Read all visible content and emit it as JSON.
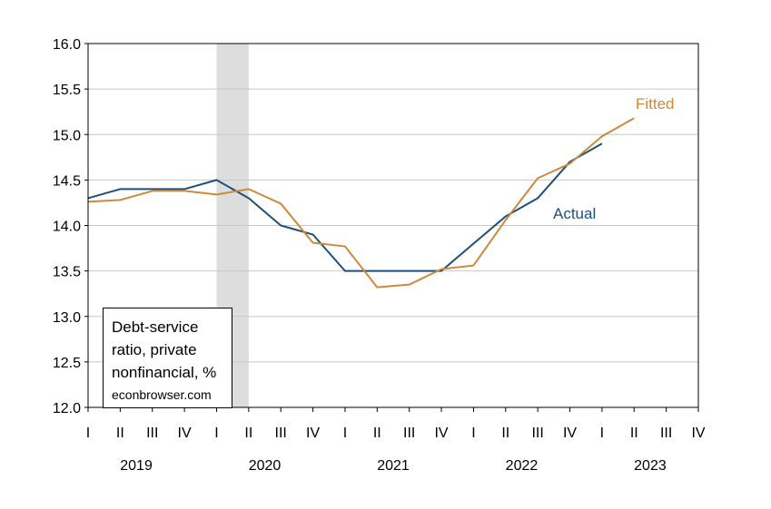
{
  "chart_data": {
    "type": "line",
    "title": "",
    "xlabel": "",
    "ylabel": "",
    "ylim": [
      12.0,
      16.0
    ],
    "yticks": [
      "12.0",
      "12.5",
      "13.0",
      "13.5",
      "14.0",
      "14.5",
      "15.0",
      "15.5",
      "16.0"
    ],
    "ytick_values": [
      12.0,
      12.5,
      13.0,
      13.5,
      14.0,
      14.5,
      15.0,
      15.5,
      16.0
    ],
    "quarter_labels": [
      "I",
      "II",
      "III",
      "IV",
      "I",
      "II",
      "III",
      "IV",
      "I",
      "II",
      "III",
      "IV",
      "I",
      "II",
      "III",
      "IV",
      "I",
      "II",
      "III",
      "IV"
    ],
    "year_labels": [
      "2019",
      "2020",
      "2021",
      "2022",
      "2023"
    ],
    "x": [
      "2019Q1",
      "2019Q2",
      "2019Q3",
      "2019Q4",
      "2020Q1",
      "2020Q2",
      "2020Q3",
      "2020Q4",
      "2021Q1",
      "2021Q2",
      "2021Q3",
      "2021Q4",
      "2022Q1",
      "2022Q2",
      "2022Q3",
      "2022Q4",
      "2023Q1",
      "2023Q2"
    ],
    "series": [
      {
        "name": "Actual",
        "color": "#1f4e79",
        "values": [
          14.3,
          14.4,
          14.4,
          14.4,
          14.5,
          14.3,
          14.0,
          13.9,
          13.5,
          13.5,
          13.5,
          13.5,
          13.8,
          14.1,
          14.3,
          14.7,
          14.9,
          null
        ]
      },
      {
        "name": "Fitted",
        "color": "#cc8a3c",
        "values": [
          14.26,
          14.28,
          14.38,
          14.38,
          14.34,
          14.4,
          14.24,
          13.81,
          13.77,
          13.32,
          13.35,
          13.52,
          13.56,
          14.06,
          14.52,
          14.68,
          14.98,
          15.18
        ]
      }
    ],
    "shading": {
      "from": "2020Q1",
      "to": "2020Q2",
      "color": "#dddddd"
    },
    "grid": true,
    "annotation": {
      "text": "Debt-service ratio, private nonfinancial, %",
      "source": "econbrowser.com"
    }
  }
}
